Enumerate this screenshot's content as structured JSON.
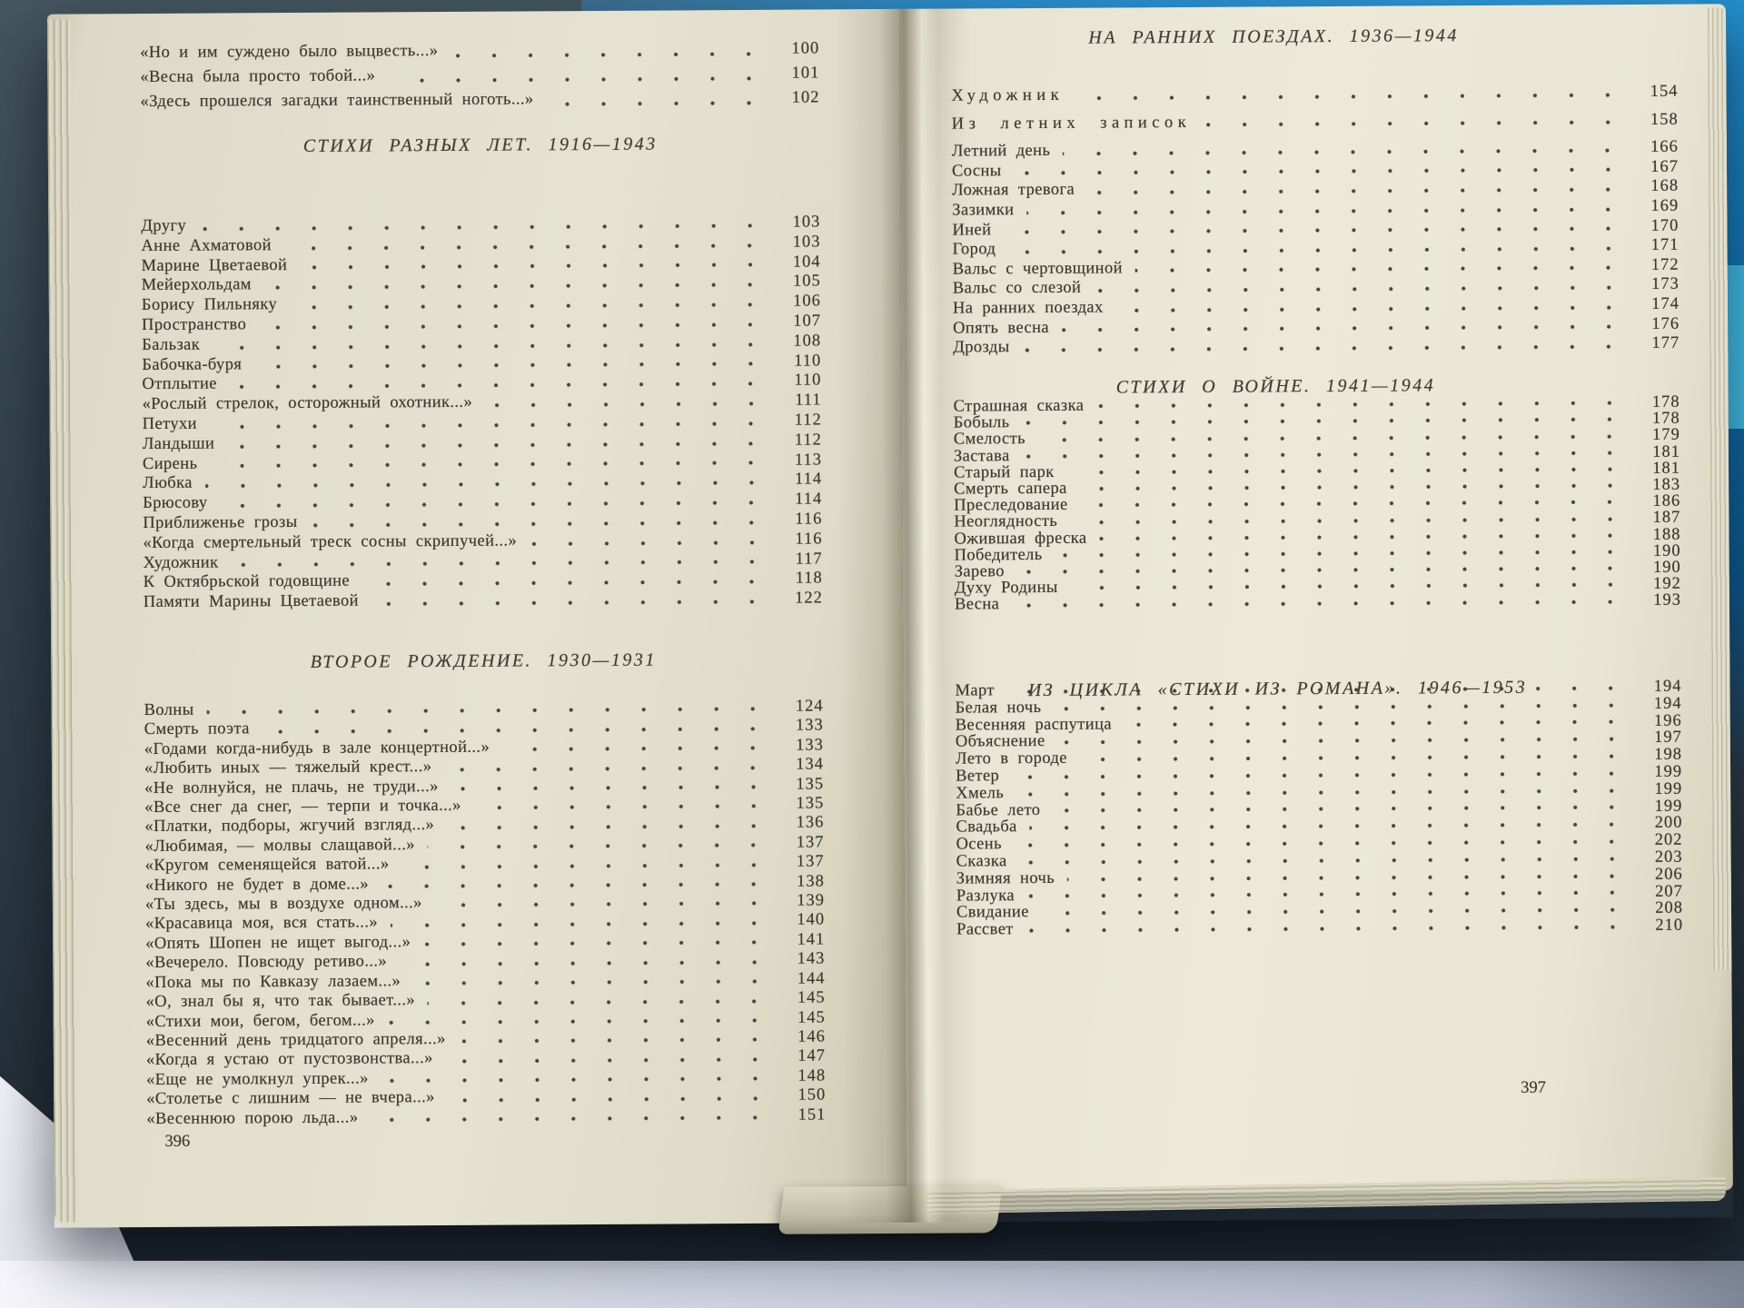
{
  "book": {
    "left_folio": "396",
    "right_folio": "397"
  },
  "colors": {
    "paper": "#e5e2d1",
    "ink": "#3a382f",
    "cover_blue": "#2b8fcf",
    "cover_cyan": "#43bfe8",
    "table_strip": "#c9cddd"
  },
  "pages": [
    {
      "folio": "396",
      "blocks": [
        {
          "type": "entries",
          "items": [
            {
              "title": "«Но и им суждено было выцвесть...»",
              "page": "100"
            },
            {
              "title": "«Весна была просто тобой...»",
              "page": "101"
            },
            {
              "title": "«Здесь прошелся загадки таинственный ноготь...»",
              "page": "102"
            }
          ]
        },
        {
          "type": "header",
          "text": "СТИХИ РАЗНЫХ ЛЕТ. 1916—1943"
        },
        {
          "type": "entries",
          "items": [
            {
              "title": "Другу",
              "page": "103"
            },
            {
              "title": "Анне Ахматовой",
              "page": "103"
            },
            {
              "title": "Марине Цветаевой",
              "page": "104"
            },
            {
              "title": "Мейерхольдам",
              "page": "105"
            },
            {
              "title": "Борису Пильняку",
              "page": "106"
            },
            {
              "title": "Пространство",
              "page": "107"
            },
            {
              "title": "Бальзак",
              "page": "108"
            },
            {
              "title": "Бабочка-буря",
              "page": "110"
            },
            {
              "title": "Отплытие",
              "page": "110"
            },
            {
              "title": "«Рослый стрелок, осторожный охотник...»",
              "page": "111"
            },
            {
              "title": "Петухи",
              "page": "112"
            },
            {
              "title": "Ландыши",
              "page": "112"
            },
            {
              "title": "Сирень",
              "page": "113"
            },
            {
              "title": "Любка",
              "page": "114"
            },
            {
              "title": "Брюсову",
              "page": "114"
            },
            {
              "title": "Приближенье грозы",
              "page": "116"
            },
            {
              "title": "«Когда смертельный треск сосны скрипучей...»",
              "page": "116"
            },
            {
              "title": "Художник",
              "page": "117"
            },
            {
              "title": "К Октябрьской годовщине",
              "page": "118"
            },
            {
              "title": "Памяти Марины Цветаевой",
              "page": "122"
            }
          ]
        },
        {
          "type": "header",
          "text": "ВТОРОЕ РОЖДЕНИЕ. 1930—1931"
        },
        {
          "type": "entries",
          "items": [
            {
              "title": "Волны",
              "page": "124"
            },
            {
              "title": "Смерть поэта",
              "page": "133"
            },
            {
              "title": "«Годами когда-нибудь в зале концертной...»",
              "page": "133"
            },
            {
              "title": "«Любить иных — тяжелый крест...»",
              "page": "134"
            },
            {
              "title": "«Не волнуйся, не плачь, не труди...»",
              "page": "135"
            },
            {
              "title": "«Все снег да снег, — терпи и точка...»",
              "page": "135"
            },
            {
              "title": "«Платки, подборы, жгучий взгляд...»",
              "page": "136"
            },
            {
              "title": "«Любимая, — молвы слащавой...»",
              "page": "137"
            },
            {
              "title": "«Кругом семенящейся ватой...»",
              "page": "137"
            },
            {
              "title": "«Никого не будет в доме...»",
              "page": "138"
            },
            {
              "title": "«Ты здесь, мы в воздухе одном...»",
              "page": "139"
            },
            {
              "title": "«Красавица моя, вся стать...»",
              "page": "140"
            },
            {
              "title": "«Опять Шопен не ищет выгод...»",
              "page": "141"
            },
            {
              "title": "«Вечерело. Повсюду ретиво...»",
              "page": "143"
            },
            {
              "title": "«Пока мы по Кавказу лазаем...»",
              "page": "144"
            },
            {
              "title": "«О, знал бы я, что так бывает...»",
              "page": "145"
            },
            {
              "title": "«Стихи мои, бегом, бегом...»",
              "page": "145"
            },
            {
              "title": "«Весенний день тридцатого апреля...»",
              "page": "146"
            },
            {
              "title": "«Когда я устаю от пустозвонства...»",
              "page": "147"
            },
            {
              "title": "«Еще не умолкнул упрек...»",
              "page": "148"
            },
            {
              "title": "«Столетье с лишним — не вчера...»",
              "page": "150"
            },
            {
              "title": "«Весеннюю порою льда...»",
              "page": "151"
            }
          ]
        },
        {
          "type": "folio",
          "text": "396"
        }
      ]
    },
    {
      "folio": "397",
      "blocks": [
        {
          "type": "header",
          "text": "НА РАННИХ ПОЕЗДАХ. 1936—1944"
        },
        {
          "type": "entries",
          "items": [
            {
              "title": "Художник",
              "page": "154",
              "spaced": true
            },
            {
              "title": "Из летних записок",
              "page": "158",
              "spaced": true
            },
            {
              "title": "Летний день",
              "page": "166"
            },
            {
              "title": "Сосны",
              "page": "167"
            },
            {
              "title": "Ложная тревога",
              "page": "168"
            },
            {
              "title": "Зазимки",
              "page": "169"
            },
            {
              "title": "Иней",
              "page": "170"
            },
            {
              "title": "Город",
              "page": "171"
            },
            {
              "title": "Вальс с чертовщиной",
              "page": "172"
            },
            {
              "title": "Вальс со слезой",
              "page": "173"
            },
            {
              "title": "На ранних поездах",
              "page": "174"
            },
            {
              "title": "Опять весна",
              "page": "176"
            },
            {
              "title": "Дрозды",
              "page": "177"
            }
          ]
        },
        {
          "type": "header",
          "text": "СТИХИ О ВОЙНЕ. 1941—1944"
        },
        {
          "type": "entries",
          "items": [
            {
              "title": "Страшная сказка",
              "page": "178"
            },
            {
              "title": "Бобыль",
              "page": "178"
            },
            {
              "title": "Смелость",
              "page": "179"
            },
            {
              "title": "Застава",
              "page": "181"
            },
            {
              "title": "Старый парк",
              "page": "181"
            },
            {
              "title": "Смерть сапера",
              "page": "183"
            },
            {
              "title": "Преследование",
              "page": "186"
            },
            {
              "title": "Неоглядность",
              "page": "187"
            },
            {
              "title": "Ожившая фреска",
              "page": "188"
            },
            {
              "title": "Победитель",
              "page": "190"
            },
            {
              "title": "Зарево",
              "page": "190"
            },
            {
              "title": "Духу Родины",
              "page": "192"
            },
            {
              "title": "Весна",
              "page": "193"
            }
          ]
        },
        {
          "type": "header",
          "text": "ИЗ ЦИКЛА «СТИХИ ИЗ РОМАНА». 1946—1953"
        },
        {
          "type": "entries",
          "items": [
            {
              "title": "Март",
              "page": "194"
            },
            {
              "title": "Белая ночь",
              "page": "194"
            },
            {
              "title": "Весенняя распутица",
              "page": "196"
            },
            {
              "title": "Объяснение",
              "page": "197"
            },
            {
              "title": "Лето в городе",
              "page": "198"
            },
            {
              "title": "Ветер",
              "page": "199"
            },
            {
              "title": "Хмель",
              "page": "199"
            },
            {
              "title": "Бабье лето",
              "page": "199"
            },
            {
              "title": "Свадьба",
              "page": "200"
            },
            {
              "title": "Осень",
              "page": "202"
            },
            {
              "title": "Сказка",
              "page": "203"
            },
            {
              "title": "Зимняя ночь",
              "page": "206"
            },
            {
              "title": "Разлука",
              "page": "207"
            },
            {
              "title": "Свидание",
              "page": "208"
            },
            {
              "title": "Рассвет",
              "page": "210"
            }
          ]
        },
        {
          "type": "folio",
          "text": "397"
        }
      ]
    }
  ]
}
